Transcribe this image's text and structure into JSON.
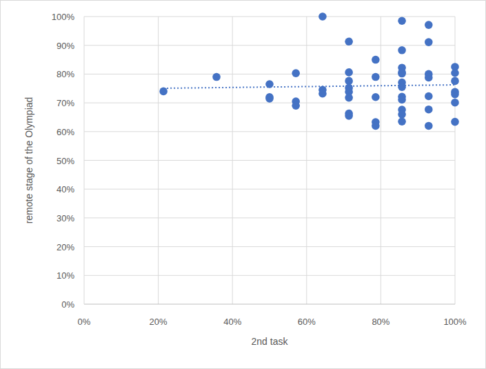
{
  "chart_data": {
    "type": "scatter",
    "x_label": "2nd task",
    "y_label": "remote stage of the Olympiad",
    "x": [
      21.4,
      35.7,
      50,
      50,
      50,
      57.1,
      57.1,
      57.1,
      64.3,
      64.3,
      64.3,
      71.4,
      71.4,
      71.4,
      71.4,
      71.4,
      71.4,
      71.4,
      71.4,
      78.6,
      78.6,
      78.6,
      78.6,
      78.6,
      85.7,
      85.7,
      85.7,
      85.7,
      85.7,
      85.7,
      85.7,
      85.7,
      85.7,
      85.7,
      85.7,
      85.7,
      92.9,
      92.9,
      92.9,
      92.9,
      92.9,
      92.9,
      92.9,
      100,
      100,
      100,
      100,
      100,
      100,
      100
    ],
    "series": [
      {
        "color": "#4472c4",
        "marker": "circle",
        "line_style": "dotted",
        "values": [
          74,
          79,
          76.5,
          72,
          71.5,
          80.3,
          70.5,
          69,
          100,
          74.5,
          73.2,
          91.3,
          80.6,
          77.6,
          75.2,
          73.8,
          71.8,
          66.3,
          65.5,
          85,
          79,
          72,
          63.3,
          62,
          98.5,
          88.3,
          82.2,
          80.6,
          80.2,
          77.1,
          75.5,
          72.1,
          71.1,
          67.6,
          66,
          63.5,
          97.1,
          91.1,
          80,
          78.8,
          72.3,
          67.7,
          62,
          82.5,
          80.4,
          77.6,
          73.8,
          73,
          70.1,
          63.4
        ]
      }
    ],
    "xlim": [
      0,
      100
    ],
    "ylim": [
      0,
      100
    ],
    "xticks": [
      {
        "value": 0,
        "label": "0%"
      },
      {
        "value": 20,
        "label": "20%"
      },
      {
        "value": 40,
        "label": "40%"
      },
      {
        "value": 60,
        "label": "60%"
      },
      {
        "value": 80,
        "label": "80%"
      },
      {
        "value": 100,
        "label": "100%"
      }
    ],
    "yticks": [
      {
        "value": 0,
        "label": "0%"
      },
      {
        "value": 10,
        "label": "10%"
      },
      {
        "value": 20,
        "label": "20%"
      },
      {
        "value": 30,
        "label": "30%"
      },
      {
        "value": 40,
        "label": "40%"
      },
      {
        "value": 50,
        "label": "50%"
      },
      {
        "value": 60,
        "label": "60%"
      },
      {
        "value": 70,
        "label": "70%"
      },
      {
        "value": 80,
        "label": "80%"
      },
      {
        "value": 90,
        "label": "90%"
      },
      {
        "value": 100,
        "label": "100%"
      }
    ],
    "grid": true
  }
}
